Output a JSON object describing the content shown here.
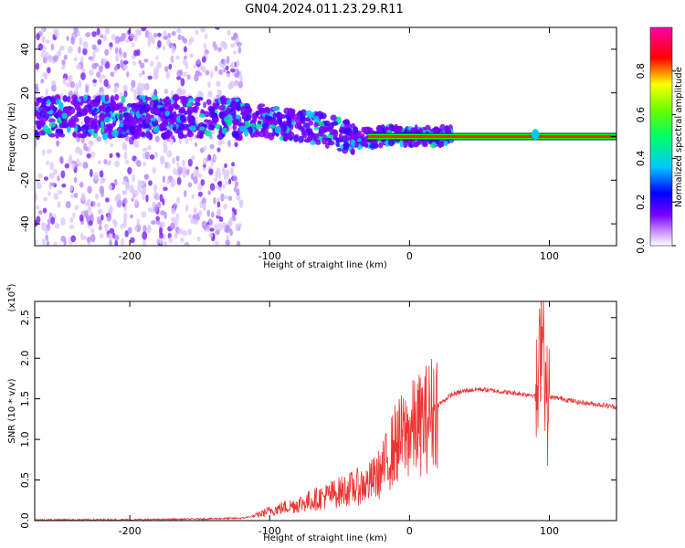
{
  "title": "GN04.2024.011.23.29.R11",
  "chart_data": [
    {
      "type": "heatmap",
      "xlabel": "Height of straight line (km)",
      "ylabel": "Frequency (Hz)",
      "xlim": [
        -268,
        148
      ],
      "ylim": [
        -50,
        50
      ],
      "xticks": [
        -200,
        -100,
        0,
        100
      ],
      "xtick_labels": [
        "-200",
        "-100",
        "0",
        "100"
      ],
      "yticks": [
        -40,
        -20,
        0,
        20,
        40
      ],
      "ytick_labels": [
        "-40",
        "-20",
        "0",
        "20",
        "40"
      ],
      "colorbar": {
        "label": "Normalized spectral amplitude",
        "range": [
          0,
          1
        ],
        "ticks": [
          0.0,
          0.2,
          0.4,
          0.6,
          0.8
        ],
        "tick_labels": [
          "0.0",
          "0.2",
          "0.4",
          "0.6",
          "0.8"
        ],
        "colors": [
          "#ffffff",
          "#7a00ff",
          "#0000ff",
          "#00c8ff",
          "#00ff00",
          "#ffff00",
          "#ff0000",
          "#ff00aa"
        ]
      },
      "ridge": {
        "x": [
          -268,
          -200,
          -150,
          -120,
          -100,
          -80,
          -60,
          -45,
          -30,
          -15,
          0,
          50,
          88,
          92,
          96,
          148
        ],
        "y": [
          9,
          9,
          9,
          8,
          7,
          5,
          3,
          0,
          -1,
          0.5,
          0,
          0,
          0,
          1,
          0,
          0
        ]
      }
    },
    {
      "type": "line",
      "xlabel": "Height of straight line (km)",
      "ylabel": "SNR (10 * v/v)",
      "y_multiplier": "(x10",
      "y_multiplier_exp": "4",
      "y_multiplier_close": ")",
      "xlim": [
        -268,
        148
      ],
      "ylim": [
        0,
        2.7
      ],
      "xticks": [
        -200,
        -100,
        0,
        100
      ],
      "xtick_labels": [
        "-200",
        "-100",
        "0",
        "100"
      ],
      "yticks": [
        0,
        0.5,
        1.0,
        1.5,
        2.0,
        2.5
      ],
      "ytick_labels": [
        "0.0",
        "0.5",
        "1.0",
        "1.5",
        "2.0",
        "2.5"
      ],
      "color": "#ee3333",
      "series": [
        {
          "x": [
            -268,
            -200,
            -150,
            -120,
            -110,
            -100,
            -80,
            -60,
            -45,
            -30,
            -20,
            -10,
            0,
            10,
            20,
            30,
            40,
            50,
            60,
            70,
            80,
            88,
            92,
            95,
            98,
            100,
            110,
            120,
            130,
            148
          ],
          "y": [
            0.01,
            0.01,
            0.02,
            0.03,
            0.06,
            0.12,
            0.2,
            0.3,
            0.38,
            0.45,
            0.6,
            0.95,
            1.1,
            1.22,
            1.42,
            1.55,
            1.6,
            1.62,
            1.6,
            1.58,
            1.56,
            1.55,
            1.5,
            2.7,
            1.4,
            1.52,
            1.5,
            1.46,
            1.44,
            1.4
          ]
        }
      ]
    }
  ]
}
